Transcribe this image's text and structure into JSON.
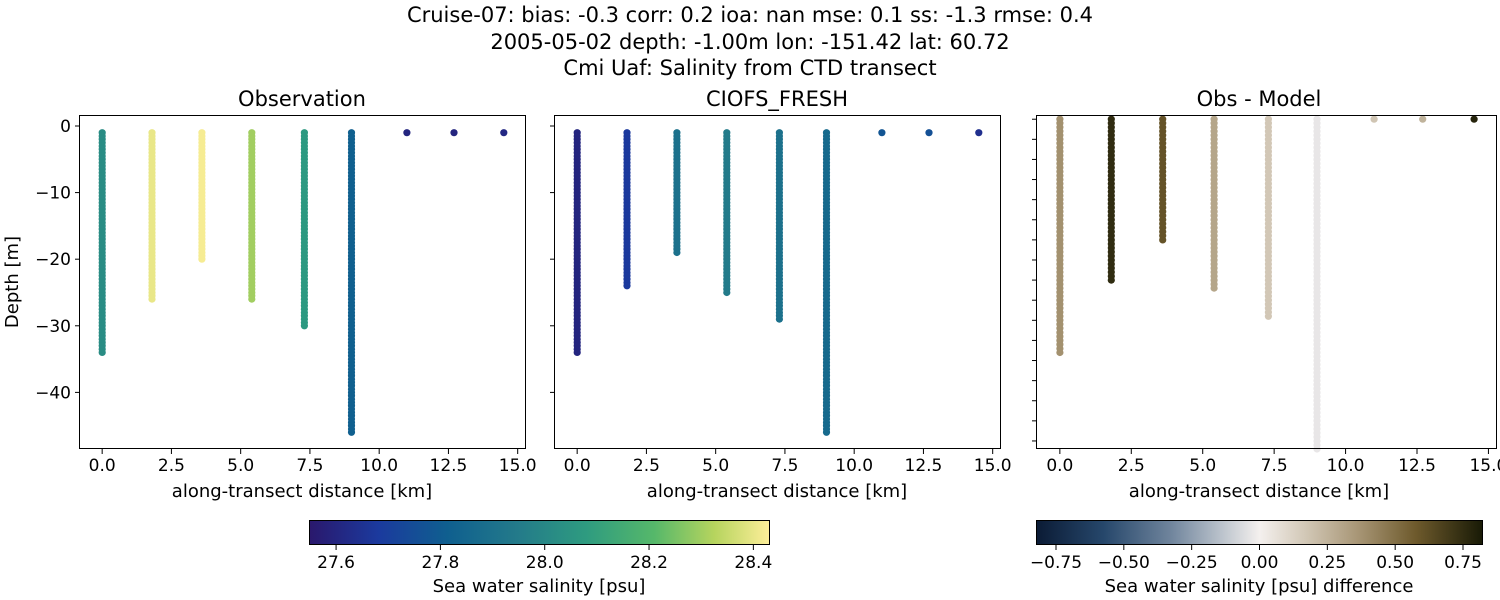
{
  "figure": {
    "title_lines": [
      "Cruise-07: bias: -0.3  corr: 0.2  ioa: nan  mse: 0.1  ss: -1.3  rmse: 0.4",
      "2005-05-02 depth: -1.00m lon: -151.42 lat: 60.72",
      "Cmi Uaf: Salinity from CTD transect"
    ]
  },
  "chart_data": [
    {
      "type": "scatter",
      "title": "Observation",
      "xlabel": "along-transect distance [km]",
      "ylabel": "Depth [m]",
      "xlim": [
        -0.8,
        15.3
      ],
      "ylim": [
        -48.5,
        1.5
      ],
      "xticks": [
        0.0,
        2.5,
        5.0,
        7.5,
        10.0,
        12.5,
        15.0
      ],
      "xtick_labels": [
        "0.0",
        "2.5",
        "5.0",
        "7.5",
        "10.0",
        "12.5",
        "15.0"
      ],
      "yticks": [
        0,
        -10,
        -20,
        -30,
        -40
      ],
      "ytick_labels": [
        "0",
        "−10",
        "−20",
        "−30",
        "−40"
      ],
      "colormap": "haline",
      "clim": [
        27.55,
        28.43
      ],
      "profiles": [
        {
          "x": 0.0,
          "depth_top": -1,
          "depth_bottom": -34,
          "value": 28.02
        },
        {
          "x": 1.8,
          "depth_top": -1,
          "depth_bottom": -26,
          "value": 28.4
        },
        {
          "x": 3.6,
          "depth_top": -1,
          "depth_bottom": -20,
          "value": 28.42
        },
        {
          "x": 5.4,
          "depth_top": -1,
          "depth_bottom": -26,
          "value": 28.3
        },
        {
          "x": 7.3,
          "depth_top": -1,
          "depth_bottom": -30,
          "value": 28.07
        },
        {
          "x": 9.0,
          "depth_top": -1,
          "depth_bottom": -46,
          "value": 27.82
        },
        {
          "x": 11.0,
          "depth_top": -1,
          "depth_bottom": -1,
          "value": 27.6
        },
        {
          "x": 12.7,
          "depth_top": -1,
          "depth_bottom": -1,
          "value": 27.6
        },
        {
          "x": 14.5,
          "depth_top": -1,
          "depth_bottom": -1,
          "value": 27.61
        }
      ]
    },
    {
      "type": "scatter",
      "title": "CIOFS_FRESH",
      "xlabel": "along-transect distance [km]",
      "ylabel": "",
      "xlim": [
        -0.8,
        15.3
      ],
      "ylim": [
        -48.5,
        1.5
      ],
      "xticks": [
        0.0,
        2.5,
        5.0,
        7.5,
        10.0,
        12.5,
        15.0
      ],
      "xtick_labels": [
        "0.0",
        "2.5",
        "5.0",
        "7.5",
        "10.0",
        "12.5",
        "15.0"
      ],
      "yticks": [
        0,
        -10,
        -20,
        -30,
        -40
      ],
      "ytick_labels": [],
      "colormap": "haline",
      "clim": [
        27.55,
        28.43
      ],
      "profiles": [
        {
          "x": 0.0,
          "depth_top": -1,
          "depth_bottom": -34,
          "value": 27.6
        },
        {
          "x": 1.8,
          "depth_top": -1,
          "depth_bottom": -24,
          "value": 27.68
        },
        {
          "x": 3.6,
          "depth_top": -1,
          "depth_bottom": -19,
          "value": 27.9
        },
        {
          "x": 5.4,
          "depth_top": -1,
          "depth_bottom": -25,
          "value": 27.95
        },
        {
          "x": 7.3,
          "depth_top": -1,
          "depth_bottom": -29,
          "value": 27.9
        },
        {
          "x": 9.0,
          "depth_top": -1,
          "depth_bottom": -46,
          "value": 27.87
        },
        {
          "x": 11.0,
          "depth_top": -1,
          "depth_bottom": -1,
          "value": 27.78
        },
        {
          "x": 12.7,
          "depth_top": -1,
          "depth_bottom": -1,
          "value": 27.76
        },
        {
          "x": 14.5,
          "depth_top": -1,
          "depth_bottom": -1,
          "value": 27.64
        }
      ]
    },
    {
      "type": "scatter",
      "title": "Obs - Model",
      "xlabel": "along-transect distance [km]",
      "ylabel": "",
      "xlim": [
        -0.8,
        15.3
      ],
      "ylim": [
        -41.0,
        0.4
      ],
      "xticks": [
        0.0,
        2.5,
        5.0,
        7.5,
        10.0,
        12.5,
        15.0
      ],
      "xtick_labels": [
        "0.0",
        "2.5",
        "5.0",
        "7.5",
        "10.0",
        "12.5",
        "15.0"
      ],
      "yticks": [
        0,
        -2.5,
        -5,
        -7.5,
        -10,
        -12.5,
        -15,
        -17.5,
        -20,
        -22.5,
        -25,
        -27.5,
        -30,
        -32.5,
        -35,
        -37.5,
        -40
      ],
      "ytick_labels": [],
      "colormap": "diff",
      "clim": [
        -0.82,
        0.82
      ],
      "profiles": [
        {
          "x": 0.0,
          "depth_top": 0,
          "depth_bottom": -29,
          "value": 0.38
        },
        {
          "x": 1.8,
          "depth_top": 0,
          "depth_bottom": -20,
          "value": 0.75
        },
        {
          "x": 3.6,
          "depth_top": 0,
          "depth_bottom": -15,
          "value": 0.6
        },
        {
          "x": 5.4,
          "depth_top": 0,
          "depth_bottom": -21,
          "value": 0.3
        },
        {
          "x": 7.3,
          "depth_top": 0,
          "depth_bottom": -24.5,
          "value": 0.17
        },
        {
          "x": 9.0,
          "depth_top": 0,
          "depth_bottom": -41,
          "value": -0.03
        },
        {
          "x": 11.0,
          "depth_top": 0,
          "depth_bottom": 0,
          "value": 0.18
        },
        {
          "x": 12.7,
          "depth_top": 0,
          "depth_bottom": 0,
          "value": 0.25
        },
        {
          "x": 14.5,
          "depth_top": 0,
          "depth_bottom": 0,
          "value": 0.78
        }
      ]
    }
  ],
  "colorbars": [
    {
      "label": "Sea water salinity [psu]",
      "colormap": "haline",
      "range": [
        27.55,
        28.43
      ],
      "ticks": [
        27.6,
        27.8,
        28.0,
        28.2,
        28.4
      ],
      "tick_labels": [
        "27.6",
        "27.8",
        "28.0",
        "28.2",
        "28.4"
      ]
    },
    {
      "label": "Sea water salinity [psu] difference",
      "colormap": "diff",
      "range": [
        -0.82,
        0.82
      ],
      "ticks": [
        -0.75,
        -0.5,
        -0.25,
        0.0,
        0.25,
        0.5,
        0.75
      ],
      "tick_labels": [
        "−0.75",
        "−0.50",
        "−0.25",
        "0.00",
        "0.25",
        "0.50",
        "0.75"
      ]
    }
  ]
}
